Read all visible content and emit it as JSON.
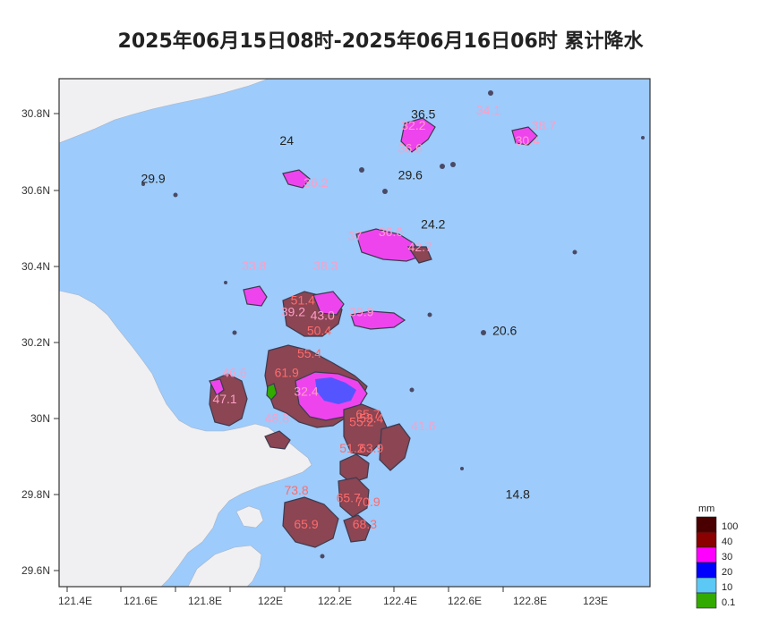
{
  "title": "2025年06月15日08时-2025年06月16日06时 累计降水",
  "axes": {
    "x_ticks": [
      "121.4E",
      "121.6E",
      "121.8E",
      "122E",
      "122.2E",
      "122.4E",
      "122.6E",
      "122.8E",
      "123E"
    ],
    "y_ticks": [
      "30.8N",
      "30.6N",
      "30.4N",
      "30.2N",
      "30N",
      "29.8N",
      "29.6N"
    ]
  },
  "stations": [
    {
      "value": "24",
      "lon": 122.05,
      "lat": 30.72,
      "tone": "dark"
    },
    {
      "value": "29.9",
      "lon": 121.64,
      "lat": 30.62,
      "tone": "dark"
    },
    {
      "value": "36.5",
      "lon": 122.47,
      "lat": 30.79,
      "tone": "dark"
    },
    {
      "value": "32.2",
      "lon": 122.44,
      "lat": 30.76,
      "tone": "pink"
    },
    {
      "value": "36.6",
      "lon": 122.43,
      "lat": 30.7,
      "tone": "pink"
    },
    {
      "value": "34.1",
      "lon": 122.67,
      "lat": 30.8,
      "tone": "pink"
    },
    {
      "value": "38.7",
      "lon": 122.84,
      "lat": 30.76,
      "tone": "pink"
    },
    {
      "value": "30.4",
      "lon": 122.79,
      "lat": 30.72,
      "tone": "pink"
    },
    {
      "value": "29.6",
      "lon": 122.43,
      "lat": 30.63,
      "tone": "dark"
    },
    {
      "value": "36.2",
      "lon": 122.14,
      "lat": 30.61,
      "tone": "pink"
    },
    {
      "value": "24.2",
      "lon": 122.5,
      "lat": 30.5,
      "tone": "dark"
    },
    {
      "value": "37",
      "lon": 122.26,
      "lat": 30.47,
      "tone": "pink"
    },
    {
      "value": "36.6",
      "lon": 122.37,
      "lat": 30.48,
      "tone": "pink"
    },
    {
      "value": "42.7",
      "lon": 122.46,
      "lat": 30.44,
      "tone": "pink"
    },
    {
      "value": "33.8",
      "lon": 121.95,
      "lat": 30.39,
      "tone": "pink"
    },
    {
      "value": "38.3",
      "lon": 122.17,
      "lat": 30.39,
      "tone": "pink"
    },
    {
      "value": "51.4",
      "lon": 122.1,
      "lat": 30.3,
      "tone": "red"
    },
    {
      "value": "39.2",
      "lon": 122.07,
      "lat": 30.27,
      "tone": "pink"
    },
    {
      "value": "43.0",
      "lon": 122.16,
      "lat": 30.26,
      "tone": "pink"
    },
    {
      "value": "39.9",
      "lon": 122.28,
      "lat": 30.27,
      "tone": "pink"
    },
    {
      "value": "50.4",
      "lon": 122.15,
      "lat": 30.22,
      "tone": "red"
    },
    {
      "value": "20.6",
      "lon": 122.72,
      "lat": 30.22,
      "tone": "dark"
    },
    {
      "value": "55.4",
      "lon": 122.12,
      "lat": 30.16,
      "tone": "red"
    },
    {
      "value": "46.6",
      "lon": 121.89,
      "lat": 30.11,
      "tone": "pink"
    },
    {
      "value": "61.9",
      "lon": 122.05,
      "lat": 30.11,
      "tone": "red"
    },
    {
      "value": "32.4",
      "lon": 122.11,
      "lat": 30.06,
      "tone": "pink"
    },
    {
      "value": "47.1",
      "lon": 121.86,
      "lat": 30.04,
      "tone": "pink"
    },
    {
      "value": "48.8",
      "lon": 122.02,
      "lat": 29.99,
      "tone": "pink"
    },
    {
      "value": "65.7",
      "lon": 122.3,
      "lat": 30.0,
      "tone": "red"
    },
    {
      "value": "55.2",
      "lon": 122.28,
      "lat": 29.98,
      "tone": "red"
    },
    {
      "value": "53.4",
      "lon": 122.31,
      "lat": 29.99,
      "tone": "red"
    },
    {
      "value": "41.6",
      "lon": 122.47,
      "lat": 29.97,
      "tone": "pink"
    },
    {
      "value": "51.2",
      "lon": 122.25,
      "lat": 29.91,
      "tone": "red"
    },
    {
      "value": "63.9",
      "lon": 122.31,
      "lat": 29.91,
      "tone": "red"
    },
    {
      "value": "14.8",
      "lon": 122.76,
      "lat": 29.79,
      "tone": "dark"
    },
    {
      "value": "73.8",
      "lon": 122.08,
      "lat": 29.8,
      "tone": "red"
    },
    {
      "value": "65.7",
      "lon": 122.24,
      "lat": 29.78,
      "tone": "red"
    },
    {
      "value": "70.9",
      "lon": 122.3,
      "lat": 29.77,
      "tone": "red"
    },
    {
      "value": "65.9",
      "lon": 122.11,
      "lat": 29.71,
      "tone": "red"
    },
    {
      "value": "68.3",
      "lon": 122.29,
      "lat": 29.71,
      "tone": "red"
    }
  ],
  "legend": {
    "unit": "mm",
    "levels": [
      {
        "label": "100",
        "color": "#4a0000"
      },
      {
        "label": "40",
        "color": "#8b0000"
      },
      {
        "label": "30",
        "color": "#ff00ff"
      },
      {
        "label": "20",
        "color": "#0000ff"
      },
      {
        "label": "10",
        "color": "#5cc8f5"
      },
      {
        "label": "0.1",
        "color": "#33aa00"
      }
    ]
  },
  "colors": {
    "sea": "#9dcbfb",
    "land": "#f0f0f3",
    "island_dark": "#8b4553",
    "island_magenta": "#ee44ee",
    "island_blue": "#5555ff"
  }
}
